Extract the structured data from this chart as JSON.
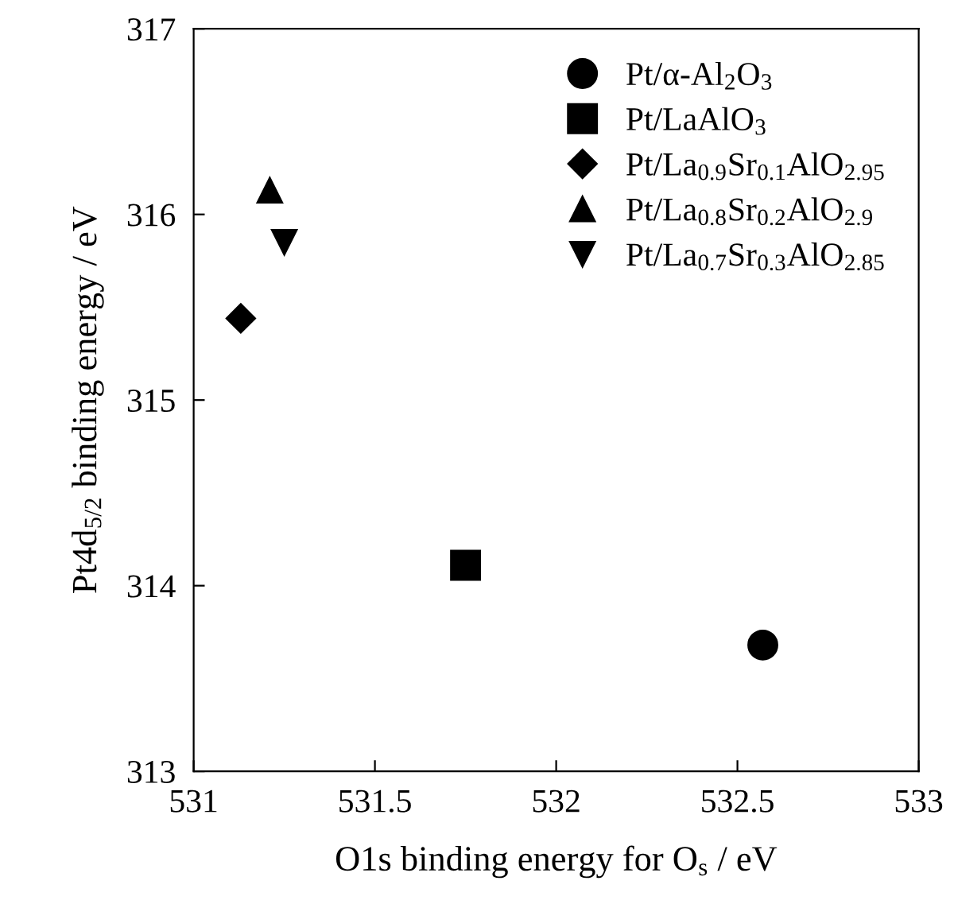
{
  "chart_data": {
    "type": "scatter",
    "xlabel": "O1s binding energy for O$_{s}$ / eV",
    "ylabel": "Pt4d$_{5/2}$ binding energy / eV",
    "xlim": [
      531,
      533
    ],
    "xticks": [
      531,
      531.5,
      532,
      532.5,
      533
    ],
    "ylim": [
      313,
      317
    ],
    "yticks": [
      313,
      314,
      315,
      316,
      317
    ],
    "grid": false,
    "legend": "top right",
    "series": [
      {
        "name": "Pt/α-Al$_{2}$O$_{3}$",
        "color": "#000000",
        "marker": "circle",
        "x": [
          532.57
        ],
        "values": [
          313.68
        ]
      },
      {
        "name": "Pt/LaAlO$_{3}$",
        "color": "#000000",
        "marker": "square",
        "x": [
          531.75
        ],
        "values": [
          314.11
        ]
      },
      {
        "name": "Pt/La$_{0.9}$Sr$_{0.1}$AlO$_{2.95}$",
        "color": "#000000",
        "marker": "diamond",
        "x": [
          531.13
        ],
        "values": [
          315.44
        ]
      },
      {
        "name": "Pt/La$_{0.8}$Sr$_{0.2}$AlO$_{2.9}$",
        "color": "#000000",
        "marker": "triangle",
        "x": [
          531.21
        ],
        "values": [
          316.13
        ]
      },
      {
        "name": "Pt/La$_{0.7}$Sr$_{0.3}$AlO$_{2.85}$",
        "color": "#000000",
        "marker": "triangle-down",
        "x": [
          531.25
        ],
        "values": [
          315.85
        ]
      }
    ]
  }
}
